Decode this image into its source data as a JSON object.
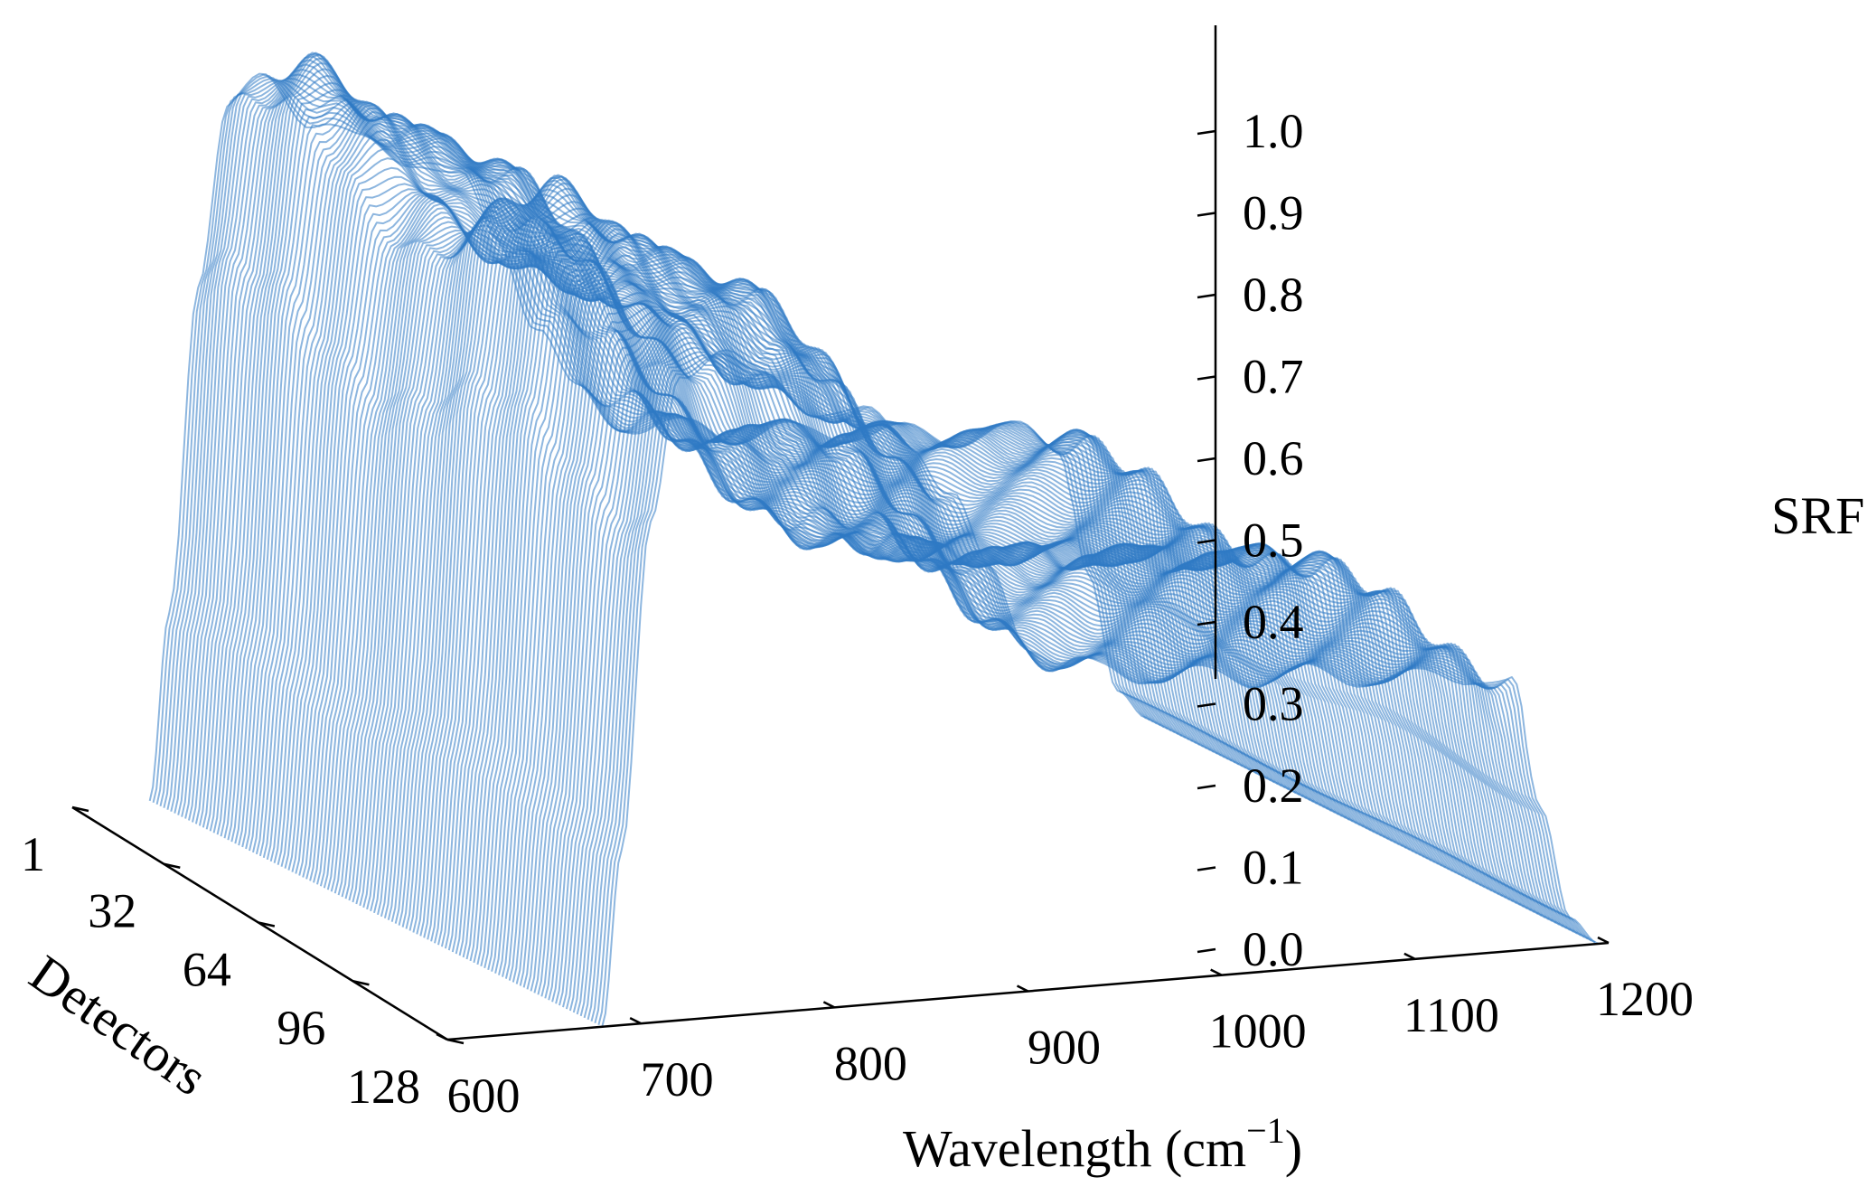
{
  "chart_data": {
    "type": "line",
    "subtype": "3d-waterfall",
    "title": "",
    "xlabel": "Wavelength (cm",
    "xlabel_sup": "−1",
    "xlabel_close": ")",
    "ylabel": "Detectors",
    "zlabel": "SRF",
    "x_ticks": [
      "600",
      "700",
      "800",
      "900",
      "1000",
      "1100",
      "1200"
    ],
    "x_range": [
      600,
      1200
    ],
    "y_ticks": [
      "1",
      "32",
      "64",
      "96",
      "128"
    ],
    "y_range": [
      1,
      128
    ],
    "z_ticks": [
      "0.0",
      "0.1",
      "0.2",
      "0.3",
      "0.4",
      "0.5",
      "0.6",
      "0.7",
      "0.8",
      "0.9",
      "1.0"
    ],
    "z_range": [
      0,
      1.05
    ],
    "detector_count": 128,
    "series_color": "#2f7ac4",
    "srf_profile_template": {
      "x": [
        640,
        650,
        665,
        680,
        700,
        725,
        750,
        775,
        800,
        820,
        840,
        860,
        880,
        900,
        920,
        940,
        960,
        980,
        1000,
        1030,
        1060,
        1090,
        1110,
        1125,
        1140,
        1155
      ],
      "srf": [
        0.0,
        0.25,
        0.7,
        0.92,
        0.96,
        0.9,
        0.86,
        0.84,
        0.8,
        0.72,
        0.6,
        0.5,
        0.46,
        0.45,
        0.44,
        0.43,
        0.43,
        0.42,
        0.42,
        0.41,
        0.4,
        0.4,
        0.38,
        0.2,
        0.04,
        0.0
      ]
    },
    "detector_shift_cm1": [
      0,
      40
    ]
  }
}
